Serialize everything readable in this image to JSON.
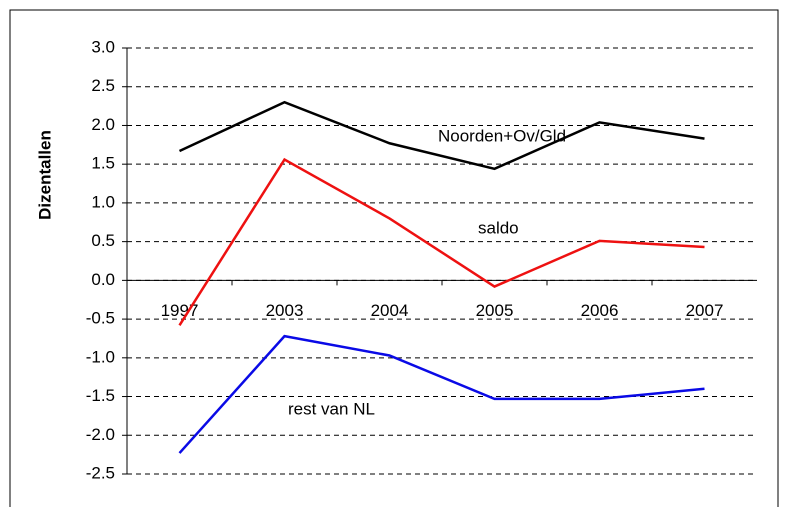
{
  "chart_data": {
    "type": "line",
    "y_label": "Dizentallen",
    "categories": [
      "1997",
      "2003",
      "2004",
      "2005",
      "2006",
      "2007"
    ],
    "series": [
      {
        "name": "Noorden+Ov/Gld",
        "color": "#000000",
        "values": [
          1.67,
          2.3,
          1.77,
          1.44,
          2.04,
          1.83
        ]
      },
      {
        "name": "saldo",
        "color": "#ee1111",
        "values": [
          -0.58,
          1.56,
          0.8,
          -0.08,
          0.51,
          0.43
        ]
      },
      {
        "name": "rest van NL",
        "color": "#0a0ae6",
        "values": [
          -2.23,
          -0.72,
          -0.97,
          -1.53,
          -1.53,
          -1.4
        ]
      }
    ],
    "ylim": [
      -2.5,
      3.0
    ],
    "yticks": [
      {
        "value": 3.0,
        "label": "3.0"
      },
      2.5,
      {
        "value": 2.0,
        "label": "2.0"
      },
      1.5,
      {
        "value": 1.0,
        "label": "1.0"
      },
      0.5,
      {
        "value": 0,
        "label": "0.0"
      },
      -0.5,
      {
        "value": -1.0,
        "label": "-1.0"
      },
      -1.5,
      {
        "value": -2.0,
        "label": "-2.0"
      },
      -2.5
    ],
    "grid": true
  }
}
